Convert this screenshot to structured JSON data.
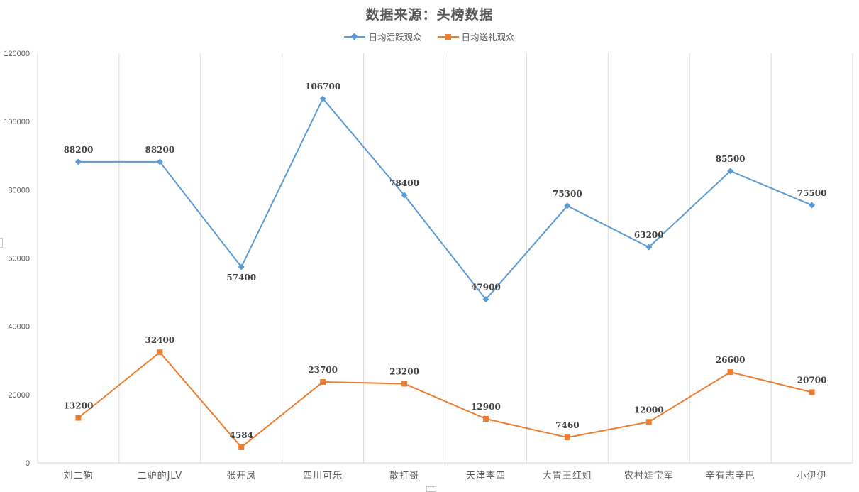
{
  "chart_data": {
    "type": "line",
    "title": "数据来源：头榜数据",
    "xlabel": "",
    "ylabel": "",
    "categories": [
      "刘二狗",
      "二驴的JLV",
      "张开凤",
      "四川可乐",
      "散打哥",
      "天津李四",
      "大胃王红姐",
      "农村娃宝军",
      "辛有志辛巴",
      "小伊伊"
    ],
    "series": [
      {
        "name": "日均活跃观众",
        "color": "#5B9BD5",
        "marker": "diamond",
        "values": [
          88200,
          88200,
          57400,
          106700,
          78400,
          47900,
          75300,
          63200,
          85500,
          75500
        ],
        "label_position": [
          "above",
          "above",
          "below",
          "above",
          "above",
          "above",
          "above",
          "above",
          "above",
          "above"
        ]
      },
      {
        "name": "日均送礼观众",
        "color": "#ED7D31",
        "marker": "square",
        "values": [
          13200,
          32400,
          4584,
          23700,
          23200,
          12900,
          7460,
          12000,
          26600,
          20700
        ],
        "label_position": [
          "above",
          "above",
          "above",
          "above",
          "above",
          "above",
          "above",
          "above",
          "above",
          "above"
        ]
      }
    ],
    "ylim": [
      0,
      120000
    ],
    "yticks": [
      0,
      20000,
      40000,
      60000,
      80000,
      100000,
      120000
    ],
    "ytick_labels": [
      "0",
      "20000",
      "40000",
      "60000",
      "80000",
      "100000",
      "120000"
    ],
    "grid": {
      "vertical_category_dividers": true,
      "horizontal": false
    },
    "legend_position": "top",
    "data_labels": true
  },
  "page": {
    "title": "数据来源：头榜数据",
    "legend": [
      {
        "label": "日均活跃观众",
        "color": "#5B9BD5",
        "marker": "diamond"
      },
      {
        "label": "日均送礼观众",
        "color": "#ED7D31",
        "marker": "square"
      }
    ]
  }
}
